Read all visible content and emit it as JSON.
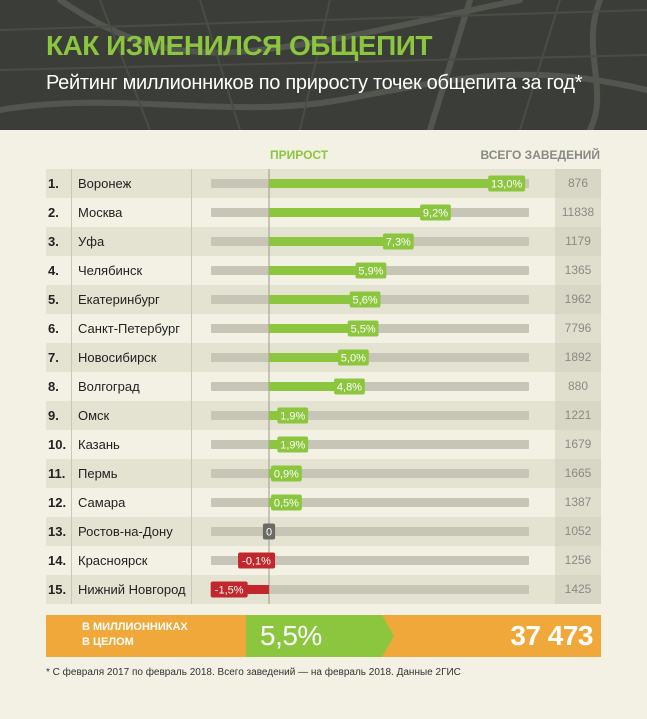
{
  "header": {
    "title": "КАК ИЗМЕНИЛСЯ ОБЩЕПИТ",
    "subtitle": "Рейтинг миллионников по приросту точек общепита за год*"
  },
  "columns": {
    "growth": "ПРИРОСТ",
    "total": "ВСЕГО ЗАВЕДЕНИЙ"
  },
  "colors": {
    "positive": "#8cc63f",
    "negative": "#c1272d",
    "zero": "#6b6b66",
    "track": "#c7c6b6",
    "summary_orange": "#f0a83a"
  },
  "chart_data": {
    "type": "bar",
    "title": "Рейтинг миллионников по приросту точек общепита за год*",
    "xlabel": "ПРИРОСТ",
    "ylabel": "",
    "xlim": [
      -2.3,
      13.6
    ],
    "categories": [
      "Воронеж",
      "Москва",
      "Уфа",
      "Челябинск",
      "Екатеринбург",
      "Санкт-Петербург",
      "Новосибирск",
      "Волгоград",
      "Омск",
      "Казань",
      "Пермь",
      "Самара",
      "Ростов-на-Дону",
      "Красноярск",
      "Нижний Новгород"
    ],
    "series": [
      {
        "name": "Прирост, %",
        "values": [
          13.0,
          9.2,
          7.3,
          5.9,
          5.6,
          5.5,
          5.0,
          4.8,
          1.9,
          1.9,
          0.9,
          0.5,
          0,
          -0.1,
          -1.5
        ]
      }
    ]
  },
  "rows": [
    {
      "rank": "1.",
      "city": "Воронеж",
      "label": "13,0%",
      "total": "876"
    },
    {
      "rank": "2.",
      "city": "Москва",
      "label": "9,2%",
      "total": "11838"
    },
    {
      "rank": "3.",
      "city": "Уфа",
      "label": "7,3%",
      "total": "1179"
    },
    {
      "rank": "4.",
      "city": "Челябинск",
      "label": "5,9%",
      "total": "1365"
    },
    {
      "rank": "5.",
      "city": "Екатеринбург",
      "label": "5,6%",
      "total": "1962"
    },
    {
      "rank": "6.",
      "city": "Санкт-Петербург",
      "label": "5,5%",
      "total": "7796"
    },
    {
      "rank": "7.",
      "city": "Новосибирск",
      "label": "5,0%",
      "total": "1892"
    },
    {
      "rank": "8.",
      "city": "Волгоград",
      "label": "4,8%",
      "total": "880"
    },
    {
      "rank": "9.",
      "city": "Омск",
      "label": "1,9%",
      "total": "1221"
    },
    {
      "rank": "10.",
      "city": "Казань",
      "label": "1,9%",
      "total": "1679"
    },
    {
      "rank": "11.",
      "city": "Пермь",
      "label": "0,9%",
      "total": "1665"
    },
    {
      "rank": "12.",
      "city": "Самара",
      "label": "0,5%",
      "total": "1387"
    },
    {
      "rank": "13.",
      "city": "Ростов-на-Дону",
      "label": "0",
      "total": "1052"
    },
    {
      "rank": "14.",
      "city": "Красноярск",
      "label": "-0,1%",
      "total": "1256"
    },
    {
      "rank": "15.",
      "city": "Нижний Новгород",
      "label": "-1,5%",
      "total": "1425"
    }
  ],
  "summary": {
    "label_line1": "В МИЛЛИОННИКАХ",
    "label_line2": "В ЦЕЛОМ",
    "growth": "5,5%",
    "total": "37 473"
  },
  "footnote": "* С февраля 2017 по февраль 2018. Всего заведений — на февраль 2018. Данные 2ГИС"
}
